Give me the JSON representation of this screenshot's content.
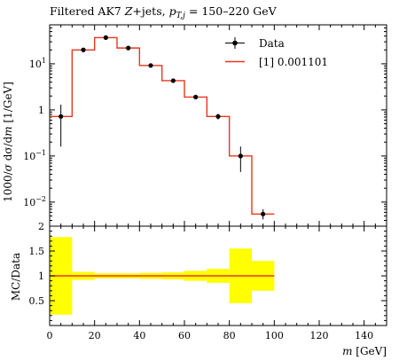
{
  "chart_data": [
    {
      "type": "line",
      "title": "Filtered AK7 Z+jets, p_{T,j} = 150–220 GeV",
      "title_parts": {
        "prefix": "Filtered AK7 ",
        "z": "Z",
        "jets": "+jets, ",
        "p": "p",
        "sub": "T,j",
        "range": " = 150–220 GeV"
      },
      "ylabel": "1000/σ dσ/dm [1/GeV]",
      "ylabel_parts": {
        "a": "1000/",
        "b": "σ",
        "c": " dσ",
        "d": "/d",
        "e": "m",
        "f": " [1/GeV]"
      },
      "yscale": "log",
      "ylim": [
        0.003,
        70
      ],
      "xlim": [
        0,
        150
      ],
      "y_ticks": [
        {
          "value": 10,
          "label": "10",
          "exp": "1"
        },
        {
          "value": 1,
          "label": "1",
          "exp": ""
        },
        {
          "value": 0.1,
          "label": "10",
          "exp": "−1"
        },
        {
          "value": 0.01,
          "label": "10",
          "exp": "−2"
        }
      ],
      "legend": {
        "placement": "top-right",
        "entries": [
          {
            "label": "Data",
            "kind": "points",
            "color": "#000000"
          },
          {
            "label": "[1] 0.001101",
            "kind": "line",
            "color": "#e8371c"
          }
        ]
      },
      "data": {
        "name": "Data",
        "x": [
          5,
          15,
          25,
          35,
          45,
          55,
          65,
          75,
          85,
          95
        ],
        "y": [
          0.72,
          20,
          37,
          22,
          9.2,
          4.3,
          1.9,
          0.72,
          0.1,
          0.0055
        ],
        "y_lo": [
          0.16,
          18.5,
          35,
          20.5,
          8.7,
          4.0,
          1.75,
          0.62,
          0.045,
          0.0042
        ],
        "y_hi": [
          1.3,
          21.5,
          39,
          23.5,
          9.7,
          4.6,
          2.05,
          0.82,
          0.16,
          0.007
        ]
      },
      "mc": {
        "name": "[1] 0.001101",
        "edges": [
          0,
          10,
          20,
          30,
          40,
          50,
          60,
          70,
          80,
          90,
          100
        ],
        "y": [
          0.72,
          20,
          37,
          22,
          9.2,
          4.3,
          1.9,
          0.72,
          0.1,
          0.0055
        ],
        "color": "#e8371c"
      }
    },
    {
      "type": "area",
      "ylabel": "MC/Data",
      "xlabel_parts": {
        "m": "m",
        "unit": " [GeV]"
      },
      "ylim": [
        0,
        2
      ],
      "xlim": [
        0,
        150
      ],
      "y_ticks": [
        "0.5",
        "1",
        "1.5",
        "2"
      ],
      "y_tick_values": [
        0.5,
        1,
        1.5,
        2
      ],
      "x_ticks": [
        "0",
        "20",
        "40",
        "60",
        "80",
        "100",
        "120",
        "140"
      ],
      "x_tick_values": [
        0,
        20,
        40,
        60,
        80,
        100,
        120,
        140
      ],
      "band_color": "#ffff00",
      "ratio_color": "#e8371c",
      "band": {
        "edges": [
          0,
          10,
          20,
          30,
          40,
          50,
          60,
          70,
          80,
          90,
          100
        ],
        "lo": [
          0.22,
          0.92,
          0.95,
          0.95,
          0.94,
          0.93,
          0.9,
          0.86,
          0.45,
          0.7
        ],
        "hi": [
          1.78,
          1.08,
          1.05,
          1.05,
          1.06,
          1.07,
          1.1,
          1.14,
          1.55,
          1.3
        ],
        "ratio": [
          1,
          1,
          1,
          1,
          1,
          1,
          1,
          1,
          1,
          1
        ]
      }
    }
  ]
}
